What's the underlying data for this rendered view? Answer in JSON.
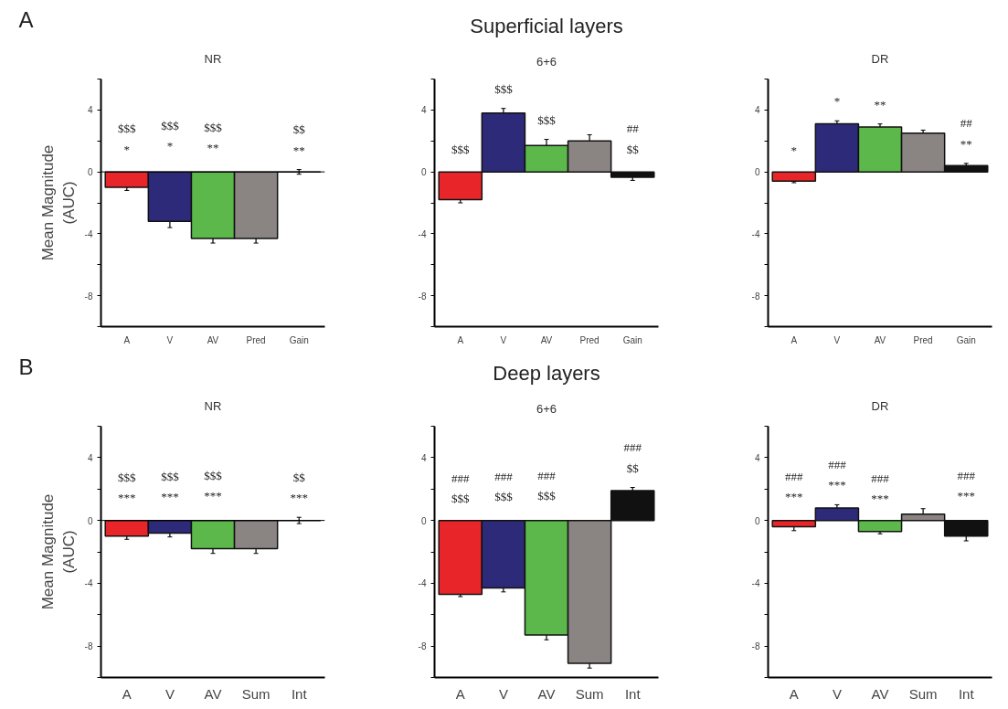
{
  "chart_data": [
    {
      "type": "bar",
      "title": "NR",
      "ylabel": "Mean Magnitude\n(AUC)",
      "categories": [
        "A",
        "V",
        "AV",
        "Pred",
        "Gain"
      ],
      "colors": [
        "#e8262a",
        "#2e2a7a",
        "#5cb84a",
        "#8a8583",
        "#111111"
      ],
      "values": [
        -1.0,
        -3.2,
        -4.3,
        -4.3,
        0.0
      ],
      "errors": [
        0.2,
        0.4,
        0.3,
        0.3,
        0.15
      ],
      "ylim": [
        -10,
        6
      ],
      "yticks": [
        {
          "value": -10,
          "label": null
        },
        -8,
        {
          "value": -6,
          "label": null
        },
        -4,
        {
          "value": -2,
          "label": null
        },
        0,
        {
          "value": 2,
          "label": null
        },
        4,
        {
          "value": 6,
          "label": null
        }
      ],
      "ref_lines": [
        {
          "axis": "y",
          "value": 0,
          "label": null
        }
      ],
      "value_labels": [
        "$$$\n*",
        "$$$\n*",
        "$$$\n**",
        null,
        "$$\n**"
      ],
      "annotations": [
        "A"
      ]
    },
    {
      "type": "bar",
      "title": "6+6",
      "categories": [
        "A",
        "V",
        "AV",
        "Pred",
        "Gain"
      ],
      "colors": [
        "#e8262a",
        "#2e2a7a",
        "#5cb84a",
        "#8a8583",
        "#111111"
      ],
      "values": [
        -1.8,
        3.8,
        1.7,
        2.0,
        -0.35
      ],
      "errors": [
        0.2,
        0.3,
        0.4,
        0.4,
        0.2
      ],
      "ylim": [
        -10,
        6
      ],
      "yticks": [
        {
          "value": -10,
          "label": null
        },
        -8,
        {
          "value": -6,
          "label": null
        },
        -4,
        {
          "value": -2,
          "label": null
        },
        0,
        {
          "value": 2,
          "label": null
        },
        4,
        {
          "value": 6,
          "label": null
        }
      ],
      "value_labels": [
        "$$$",
        "$$$",
        "$$$",
        null,
        "##\n$$"
      ],
      "annotations": [
        "Superficial layers"
      ]
    },
    {
      "type": "bar",
      "title": "DR",
      "categories": [
        "A",
        "V",
        "AV",
        "Pred",
        "Gain"
      ],
      "colors": [
        "#e8262a",
        "#2e2a7a",
        "#5cb84a",
        "#8a8583",
        "#111111"
      ],
      "values": [
        -0.6,
        3.1,
        2.9,
        2.5,
        0.4
      ],
      "errors": [
        0.1,
        0.2,
        0.2,
        0.2,
        0.15
      ],
      "ylim": [
        -10,
        6
      ],
      "yticks": [
        {
          "value": -10,
          "label": null
        },
        -8,
        {
          "value": -6,
          "label": null
        },
        -4,
        {
          "value": -2,
          "label": null
        },
        0,
        {
          "value": 2,
          "label": null
        },
        4,
        {
          "value": 6,
          "label": null
        }
      ],
      "value_labels": [
        "*",
        "*",
        "**",
        null,
        "##\n**"
      ]
    },
    {
      "type": "bar",
      "title": "NR",
      "ylabel": "Mean Magnitude\n(AUC)",
      "categories": [
        "A",
        "V",
        "AV",
        "Sum",
        "Int"
      ],
      "colors": [
        "#e8262a",
        "#2e2a7a",
        "#5cb84a",
        "#8a8583",
        "#111111"
      ],
      "values": [
        -1.0,
        -0.8,
        -1.8,
        -1.8,
        0.0
      ],
      "errors": [
        0.2,
        0.25,
        0.3,
        0.3,
        0.2
      ],
      "ylim": [
        -10,
        6
      ],
      "yticks": [
        {
          "value": -10,
          "label": null
        },
        -8,
        {
          "value": -6,
          "label": null
        },
        -4,
        {
          "value": -2,
          "label": null
        },
        0,
        {
          "value": 2,
          "label": null
        },
        4,
        {
          "value": 6,
          "label": null
        }
      ],
      "ref_lines": [
        {
          "axis": "y",
          "value": 0,
          "label": null
        }
      ],
      "value_labels": [
        "$$$\n***",
        "$$$\n***",
        "$$$\n***",
        null,
        "$$\n***"
      ],
      "annotations": [
        "B"
      ]
    },
    {
      "type": "bar",
      "title": "6+6",
      "categories": [
        "A",
        "V",
        "AV",
        "Sum",
        "Int"
      ],
      "colors": [
        "#e8262a",
        "#2e2a7a",
        "#5cb84a",
        "#8a8583",
        "#111111"
      ],
      "values": [
        -4.7,
        -4.3,
        -7.3,
        -9.1,
        1.9
      ],
      "errors": [
        0.15,
        0.25,
        0.3,
        0.3,
        0.2
      ],
      "ylim": [
        -10,
        6
      ],
      "yticks": [
        {
          "value": -10,
          "label": null
        },
        -8,
        {
          "value": -6,
          "label": null
        },
        -4,
        {
          "value": -2,
          "label": null
        },
        0,
        {
          "value": 2,
          "label": null
        },
        4,
        {
          "value": 6,
          "label": null
        }
      ],
      "value_labels": [
        "###\n$$$",
        "###\n$$$",
        "###\n$$$",
        null,
        "###\n$$"
      ],
      "annotations": [
        "Deep layers"
      ]
    },
    {
      "type": "bar",
      "title": "DR",
      "categories": [
        "A",
        "V",
        "AV",
        "Sum",
        "Int"
      ],
      "colors": [
        "#e8262a",
        "#2e2a7a",
        "#5cb84a",
        "#8a8583",
        "#111111"
      ],
      "values": [
        -0.4,
        0.8,
        -0.7,
        0.4,
        -1.0
      ],
      "errors": [
        0.25,
        0.2,
        0.15,
        0.35,
        0.3
      ],
      "ylim": [
        -10,
        6
      ],
      "yticks": [
        {
          "value": -10,
          "label": null
        },
        -8,
        {
          "value": -6,
          "label": null
        },
        -4,
        {
          "value": -2,
          "label": null
        },
        0,
        {
          "value": 2,
          "label": null
        },
        4,
        {
          "value": 6,
          "label": null
        }
      ],
      "value_labels": [
        "###\n***",
        "###\n***",
        "###\n***",
        null,
        "###\n***"
      ]
    }
  ]
}
